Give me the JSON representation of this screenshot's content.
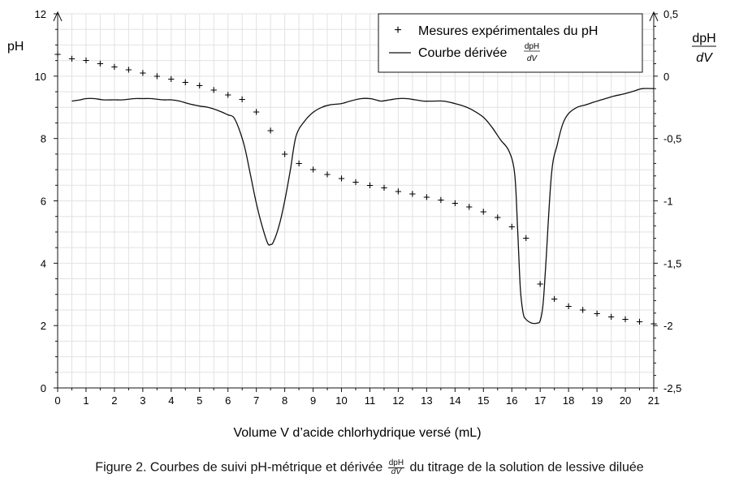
{
  "chart_data": {
    "type": "scatter+line",
    "xlabel": "Volume V d’acide chlorhydrique versé (mL)",
    "ylabel_left": "pH",
    "ylabel_right_num": "dpH",
    "ylabel_right_den": "dV",
    "xlim": [
      0,
      21
    ],
    "ylim_left": [
      0,
      12
    ],
    "ylim_right": [
      -2.5,
      0.5
    ],
    "x_ticks": [
      "0",
      "1",
      "2",
      "3",
      "4",
      "5",
      "6",
      "7",
      "8",
      "9",
      "10",
      "11",
      "12",
      "13",
      "14",
      "15",
      "16",
      "17",
      "18",
      "19",
      "20",
      "21"
    ],
    "y_left_ticks": [
      "0",
      "2",
      "4",
      "6",
      "8",
      "10",
      "12"
    ],
    "y_right_ticks": [
      "-2,5",
      "-2",
      "-1,5",
      "-1",
      "-0,5",
      "0",
      "0,5"
    ],
    "grid": true,
    "legend_position": "top-right",
    "series": [
      {
        "name": "Mesures expérimentales du pH",
        "marker": "+",
        "axis": "left",
        "x": [
          0,
          0.5,
          1,
          1.5,
          2,
          2.5,
          3,
          3.5,
          4,
          4.5,
          5,
          5.5,
          6,
          6.5,
          7,
          7.5,
          8,
          8.5,
          9,
          9.5,
          10,
          10.5,
          11,
          11.5,
          12,
          12.5,
          13,
          13.5,
          14,
          14.5,
          15,
          15.5,
          16,
          16.5,
          17,
          17.5,
          18,
          18.5,
          19,
          19.5,
          20,
          20.5,
          21
        ],
        "y": [
          10.7,
          10.55,
          10.5,
          10.4,
          10.3,
          10.2,
          10.1,
          10.0,
          9.9,
          9.8,
          9.7,
          9.55,
          9.4,
          9.25,
          8.85,
          8.25,
          7.5,
          7.2,
          7.0,
          6.85,
          6.72,
          6.6,
          6.5,
          6.42,
          6.3,
          6.22,
          6.12,
          6.02,
          5.92,
          5.8,
          5.65,
          5.47,
          5.17,
          4.8,
          3.33,
          2.85,
          2.62,
          2.5,
          2.38,
          2.28,
          2.2,
          2.12,
          2.05
        ]
      },
      {
        "name_prefix": "Courbe dérivée",
        "name_num": "dpH",
        "name_den": "dV",
        "axis": "right",
        "x": [
          0.5,
          0.8,
          1,
          1.3,
          1.6,
          2,
          2.3,
          2.7,
          3,
          3.3,
          3.7,
          4,
          4.3,
          4.6,
          5,
          5.3,
          5.7,
          6,
          6.2,
          6.4,
          6.6,
          6.8,
          7,
          7.2,
          7.4,
          7.5,
          7.6,
          7.8,
          8,
          8.2,
          8.4,
          8.7,
          9,
          9.3,
          9.6,
          10,
          10.3,
          10.7,
          11,
          11.2,
          11.4,
          11.7,
          12,
          12.3,
          12.6,
          12.9,
          13.2,
          13.6,
          14,
          14.3,
          14.6,
          15,
          15.3,
          15.6,
          15.9,
          16.1,
          16.2,
          16.3,
          16.4,
          16.5,
          16.7,
          16.9,
          17,
          17.1,
          17.2,
          17.4,
          17.6,
          17.8,
          18,
          18.3,
          18.6,
          19,
          19.3,
          19.6,
          20,
          20.3,
          20.6,
          21
        ],
        "y": [
          -0.2,
          -0.19,
          -0.18,
          -0.18,
          -0.19,
          -0.19,
          -0.19,
          -0.18,
          -0.18,
          -0.18,
          -0.19,
          -0.19,
          -0.2,
          -0.22,
          -0.24,
          -0.25,
          -0.28,
          -0.31,
          -0.33,
          -0.43,
          -0.58,
          -0.8,
          -1.02,
          -1.2,
          -1.34,
          -1.35,
          -1.33,
          -1.2,
          -1.0,
          -0.75,
          -0.48,
          -0.36,
          -0.29,
          -0.25,
          -0.23,
          -0.22,
          -0.2,
          -0.18,
          -0.18,
          -0.19,
          -0.2,
          -0.19,
          -0.18,
          -0.18,
          -0.19,
          -0.2,
          -0.2,
          -0.2,
          -0.22,
          -0.24,
          -0.27,
          -0.33,
          -0.41,
          -0.51,
          -0.6,
          -0.78,
          -1.2,
          -1.7,
          -1.9,
          -1.95,
          -1.98,
          -1.98,
          -1.96,
          -1.83,
          -1.5,
          -0.78,
          -0.55,
          -0.38,
          -0.3,
          -0.25,
          -0.23,
          -0.2,
          -0.18,
          -0.16,
          -0.14,
          -0.12,
          -0.1,
          -0.1
        ]
      }
    ]
  },
  "caption": {
    "prefix": "Figure 2. Courbes de suivi pH-métrique et dérivée",
    "num": "dpH",
    "den": "dV",
    "suffix": "du titrage de la solution de lessive diluée"
  }
}
